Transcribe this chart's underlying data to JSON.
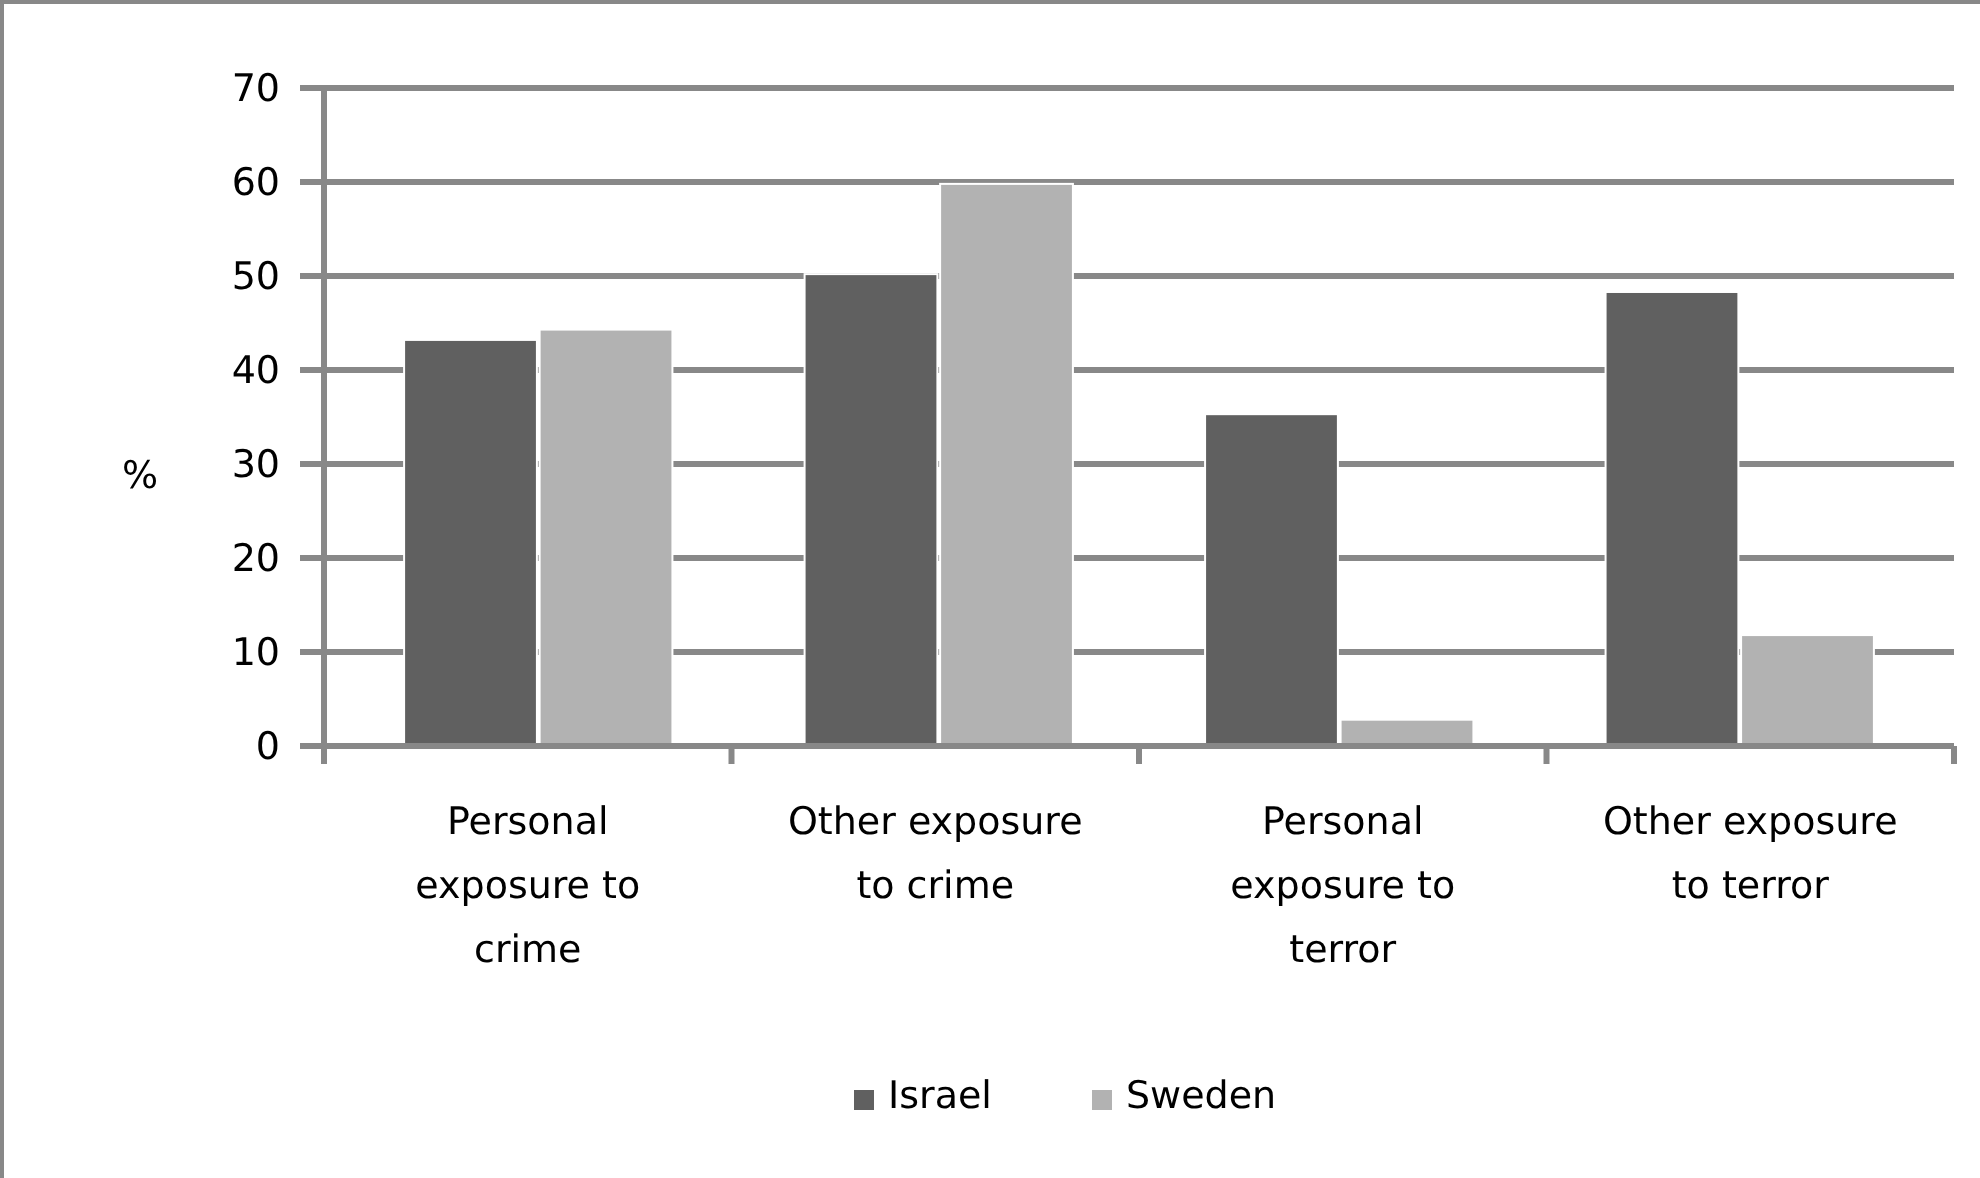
{
  "chart_data": {
    "type": "bar",
    "ylabel": "%",
    "categories": [
      "Personal exposure to crime",
      "Other exposure to crime",
      "Personal exposure to terror",
      "Other exposure to terror"
    ],
    "series": [
      {
        "name": "Israel",
        "color": "#606060",
        "values": [
          43.2,
          50.2,
          35.3,
          48.3
        ]
      },
      {
        "name": "Sweden",
        "color": "#b2b2b2",
        "values": [
          44.3,
          59.8,
          2.8,
          11.8
        ]
      }
    ],
    "ylim": [
      0,
      70
    ],
    "yticks": [
      0,
      10,
      20,
      30,
      40,
      50,
      60,
      70
    ],
    "grid": "y",
    "legend": "bottom"
  }
}
